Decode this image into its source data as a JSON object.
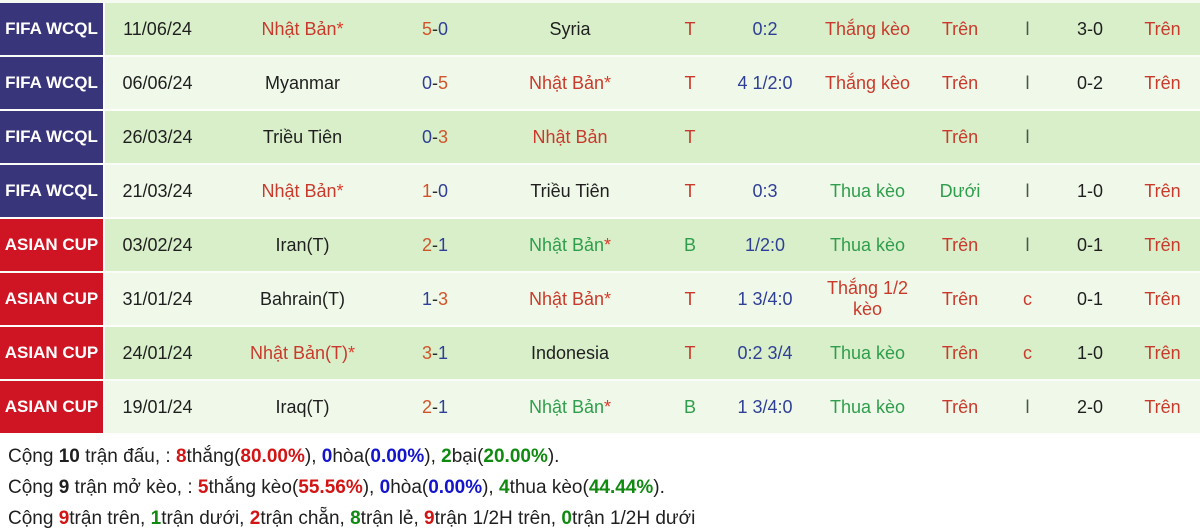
{
  "colors": {
    "navy_box": "#39357a",
    "red_box": "#cf1423",
    "row_dark": "#d9efca",
    "row_light": "#f0f9e9",
    "red": "#c93a2c",
    "green": "#2f9e4c",
    "navy": "#2f3f96",
    "score_red": "#d0542b",
    "black": "#1f1f1f",
    "lc": "#49564b",
    "sum_red": "#d21414",
    "sum_blue": "#1414cc",
    "sum_green": "#108a10",
    "star": "#e03a2a"
  },
  "table": {
    "rows": [
      {
        "competition": "FIFA WCQL",
        "competition_lines": [
          "FIFA WCQ",
          "L"
        ],
        "competition_type": "wcql",
        "date": "11/06/24",
        "home": {
          "name": "Nhật Bản",
          "star": true,
          "cls": "r"
        },
        "score": {
          "home": "5",
          "home_cls": "sr",
          "away": "0",
          "away_cls": "n"
        },
        "away": {
          "name": "Syria",
          "star": false,
          "cls": "k"
        },
        "result": {
          "text": "T",
          "cls": "r"
        },
        "odds": "0:2",
        "handicap_result": {
          "text": "Thắng kèo",
          "cls": "r"
        },
        "over_under": {
          "text": "Trên",
          "cls": "r"
        },
        "odd_even": {
          "text": "l",
          "cls": "lc"
        },
        "ht_score": "3-0",
        "ht_over_under": {
          "text": "Trên",
          "cls": "r"
        }
      },
      {
        "competition": "FIFA WCQL",
        "competition_lines": [
          "FIFA WCQ",
          "L"
        ],
        "competition_type": "wcql",
        "date": "06/06/24",
        "home": {
          "name": "Myanmar",
          "star": false,
          "cls": "k"
        },
        "score": {
          "home": "0",
          "home_cls": "n",
          "away": "5",
          "away_cls": "sr"
        },
        "away": {
          "name": "Nhật Bản",
          "star": true,
          "cls": "r"
        },
        "result": {
          "text": "T",
          "cls": "r"
        },
        "odds": "4 1/2:0",
        "handicap_result": {
          "text": "Thắng kèo",
          "cls": "r"
        },
        "over_under": {
          "text": "Trên",
          "cls": "r"
        },
        "odd_even": {
          "text": "l",
          "cls": "lc"
        },
        "ht_score": "0-2",
        "ht_over_under": {
          "text": "Trên",
          "cls": "r"
        }
      },
      {
        "competition": "FIFA WCQL",
        "competition_lines": [
          "FIFA WCQ",
          "L"
        ],
        "competition_type": "wcql",
        "date": "26/03/24",
        "home": {
          "name": "Triều Tiên",
          "star": false,
          "cls": "k"
        },
        "score": {
          "home": "0",
          "home_cls": "n",
          "away": "3",
          "away_cls": "sr"
        },
        "away": {
          "name": "Nhật Bản",
          "star": false,
          "cls": "r"
        },
        "result": {
          "text": "T",
          "cls": "r"
        },
        "odds": "",
        "handicap_result": {
          "text": "",
          "cls": "k"
        },
        "over_under": {
          "text": "Trên",
          "cls": "r"
        },
        "odd_even": {
          "text": "l",
          "cls": "lc"
        },
        "ht_score": "",
        "ht_over_under": {
          "text": "",
          "cls": "r"
        }
      },
      {
        "competition": "FIFA WCQL",
        "competition_lines": [
          "FIFA WCQ",
          "L"
        ],
        "competition_type": "wcql",
        "date": "21/03/24",
        "home": {
          "name": "Nhật Bản",
          "star": true,
          "cls": "r"
        },
        "score": {
          "home": "1",
          "home_cls": "sr",
          "away": "0",
          "away_cls": "n"
        },
        "away": {
          "name": "Triều Tiên",
          "star": false,
          "cls": "k"
        },
        "result": {
          "text": "T",
          "cls": "r"
        },
        "odds": "0:3",
        "handicap_result": {
          "text": "Thua kèo",
          "cls": "g"
        },
        "over_under": {
          "text": "Dưới",
          "cls": "g"
        },
        "odd_even": {
          "text": "l",
          "cls": "lc"
        },
        "ht_score": "1-0",
        "ht_over_under": {
          "text": "Trên",
          "cls": "r"
        }
      },
      {
        "competition": "ASIAN CUP",
        "competition_lines": [
          "ASIAN CU",
          "P"
        ],
        "competition_type": "asian",
        "date": "03/02/24",
        "home": {
          "name": "Iran(T)",
          "star": false,
          "cls": "k"
        },
        "score": {
          "home": "2",
          "home_cls": "sr",
          "away": "1",
          "away_cls": "n"
        },
        "away": {
          "name": "Nhật Bản",
          "star": true,
          "cls": "g"
        },
        "result": {
          "text": "B",
          "cls": "g"
        },
        "odds": "1/2:0",
        "handicap_result": {
          "text": "Thua kèo",
          "cls": "g"
        },
        "over_under": {
          "text": "Trên",
          "cls": "r"
        },
        "odd_even": {
          "text": "l",
          "cls": "lc"
        },
        "ht_score": "0-1",
        "ht_over_under": {
          "text": "Trên",
          "cls": "r"
        }
      },
      {
        "competition": "ASIAN CUP",
        "competition_lines": [
          "ASIAN CU",
          "P"
        ],
        "competition_type": "asian",
        "date": "31/01/24",
        "home": {
          "name": "Bahrain(T)",
          "star": false,
          "cls": "k"
        },
        "score": {
          "home": "1",
          "home_cls": "n",
          "away": "3",
          "away_cls": "sr"
        },
        "away": {
          "name": "Nhật Bản",
          "star": true,
          "cls": "r"
        },
        "result": {
          "text": "T",
          "cls": "r"
        },
        "odds": "1 3/4:0",
        "handicap_result": {
          "text": "Thắng 1/2 kèo",
          "cls": "r"
        },
        "over_under": {
          "text": "Trên",
          "cls": "r"
        },
        "odd_even": {
          "text": "c",
          "cls": "r"
        },
        "ht_score": "0-1",
        "ht_over_under": {
          "text": "Trên",
          "cls": "r"
        }
      },
      {
        "competition": "ASIAN CUP",
        "competition_lines": [
          "ASIAN CU",
          "P"
        ],
        "competition_type": "asian",
        "date": "24/01/24",
        "home": {
          "name": "Nhật Bản(T)",
          "star": true,
          "cls": "r"
        },
        "score": {
          "home": "3",
          "home_cls": "sr",
          "away": "1",
          "away_cls": "n"
        },
        "away": {
          "name": "Indonesia",
          "star": false,
          "cls": "k"
        },
        "result": {
          "text": "T",
          "cls": "r"
        },
        "odds": "0:2 3/4",
        "handicap_result": {
          "text": "Thua kèo",
          "cls": "g"
        },
        "over_under": {
          "text": "Trên",
          "cls": "r"
        },
        "odd_even": {
          "text": "c",
          "cls": "r"
        },
        "ht_score": "1-0",
        "ht_over_under": {
          "text": "Trên",
          "cls": "r"
        }
      },
      {
        "competition": "ASIAN CUP",
        "competition_lines": [
          "ASIAN CU",
          "P"
        ],
        "competition_type": "asian",
        "date": "19/01/24",
        "home": {
          "name": "Iraq(T)",
          "star": false,
          "cls": "k"
        },
        "score": {
          "home": "2",
          "home_cls": "sr",
          "away": "1",
          "away_cls": "n"
        },
        "away": {
          "name": "Nhật Bản",
          "star": true,
          "cls": "g"
        },
        "result": {
          "text": "B",
          "cls": "g"
        },
        "odds": "1 3/4:0",
        "handicap_result": {
          "text": "Thua kèo",
          "cls": "g"
        },
        "over_under": {
          "text": "Trên",
          "cls": "r"
        },
        "odd_even": {
          "text": "l",
          "cls": "lc"
        },
        "ht_score": "2-0",
        "ht_over_under": {
          "text": "Trên",
          "cls": "r"
        }
      }
    ]
  },
  "summary": {
    "lines": [
      {
        "name": "summary-total-matches",
        "segments": [
          {
            "text": "Cộng ",
            "cls": "k",
            "bold": false
          },
          {
            "text": "10",
            "cls": "k",
            "bold": true
          },
          {
            "text": " trận đấu, : ",
            "cls": "k",
            "bold": false
          },
          {
            "text": "8",
            "cls": "sred",
            "bold": true
          },
          {
            "text": "thắng(",
            "cls": "k",
            "bold": false
          },
          {
            "text": "80.00%",
            "cls": "sred",
            "bold": true
          },
          {
            "text": "), ",
            "cls": "k",
            "bold": false
          },
          {
            "text": "0",
            "cls": "b",
            "bold": true
          },
          {
            "text": "hòa(",
            "cls": "k",
            "bold": false
          },
          {
            "text": "0.00%",
            "cls": "b",
            "bold": true
          },
          {
            "text": "), ",
            "cls": "k",
            "bold": false
          },
          {
            "text": "2",
            "cls": "sgreen",
            "bold": true
          },
          {
            "text": "bại(",
            "cls": "k",
            "bold": false
          },
          {
            "text": "20.00%",
            "cls": "sgreen",
            "bold": true
          },
          {
            "text": ").",
            "cls": "k",
            "bold": false
          }
        ]
      },
      {
        "name": "summary-handicap",
        "segments": [
          {
            "text": "Cộng ",
            "cls": "k",
            "bold": false
          },
          {
            "text": "9",
            "cls": "k",
            "bold": true
          },
          {
            "text": " trận mở kèo, : ",
            "cls": "k",
            "bold": false
          },
          {
            "text": "5",
            "cls": "sred",
            "bold": true
          },
          {
            "text": "thắng kèo(",
            "cls": "k",
            "bold": false
          },
          {
            "text": "55.56%",
            "cls": "sred",
            "bold": true
          },
          {
            "text": "), ",
            "cls": "k",
            "bold": false
          },
          {
            "text": "0",
            "cls": "b",
            "bold": true
          },
          {
            "text": "hòa(",
            "cls": "k",
            "bold": false
          },
          {
            "text": "0.00%",
            "cls": "b",
            "bold": true
          },
          {
            "text": "), ",
            "cls": "k",
            "bold": false
          },
          {
            "text": "4",
            "cls": "sgreen",
            "bold": true
          },
          {
            "text": "thua kèo(",
            "cls": "k",
            "bold": false
          },
          {
            "text": "44.44%",
            "cls": "sgreen",
            "bold": true
          },
          {
            "text": ").",
            "cls": "k",
            "bold": false
          }
        ]
      },
      {
        "name": "summary-over-under",
        "segments": [
          {
            "text": "Cộng ",
            "cls": "k",
            "bold": false
          },
          {
            "text": "9",
            "cls": "sred",
            "bold": true
          },
          {
            "text": "trận trên, ",
            "cls": "k",
            "bold": false
          },
          {
            "text": "1",
            "cls": "sgreen",
            "bold": true
          },
          {
            "text": "trận dưới, ",
            "cls": "k",
            "bold": false
          },
          {
            "text": "2",
            "cls": "sred",
            "bold": true
          },
          {
            "text": "trận chẵn, ",
            "cls": "k",
            "bold": false
          },
          {
            "text": "8",
            "cls": "sgreen",
            "bold": true
          },
          {
            "text": "trận lẻ, ",
            "cls": "k",
            "bold": false
          },
          {
            "text": "9",
            "cls": "sred",
            "bold": true
          },
          {
            "text": "trận 1/2H trên, ",
            "cls": "k",
            "bold": false
          },
          {
            "text": "0",
            "cls": "sgreen",
            "bold": true
          },
          {
            "text": "trận 1/2H dưới",
            "cls": "k",
            "bold": false
          }
        ]
      }
    ]
  }
}
